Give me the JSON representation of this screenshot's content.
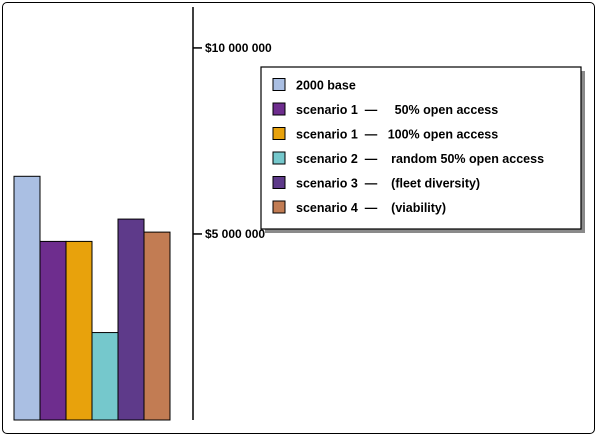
{
  "chart_data": {
    "type": "bar",
    "categories": [
      "2000 base",
      "scenario 1  —     50% open access",
      "scenario 1  —   100% open access",
      "scenario 2  —    random 50% open access",
      "scenario 3  —    (fleet diversity)",
      "scenario 4  —    (viability)"
    ],
    "values": [
      6550000,
      4800000,
      4800000,
      2350000,
      5400000,
      5050000
    ],
    "colors": [
      "#aabfe3",
      "#6e2d8e",
      "#e8a20c",
      "#75c8cc",
      "#5e3a8a",
      "#c27c53"
    ],
    "ylim": [
      0,
      11100000
    ],
    "yticks": [
      {
        "value": 5000000,
        "label": "$5 000 000"
      },
      {
        "value": 10000000,
        "label": "$10 000 000"
      }
    ],
    "legend_position": "right",
    "title": "",
    "xlabel": "",
    "ylabel": ""
  }
}
